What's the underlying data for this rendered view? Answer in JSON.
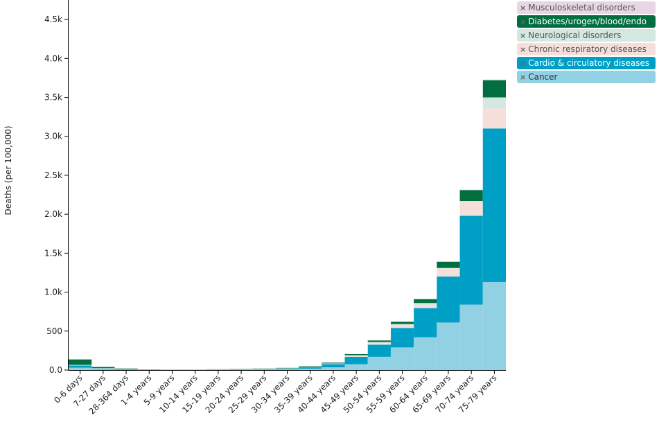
{
  "chart_data": {
    "type": "bar",
    "stacked": true,
    "ylabel": "Deaths (per 100,000)",
    "ylim": [
      0,
      4750
    ],
    "y_ticks": [
      {
        "value": 0,
        "label": "0.0"
      },
      {
        "value": 500,
        "label": "500"
      },
      {
        "value": 1000,
        "label": "1.0k"
      },
      {
        "value": 1500,
        "label": "1.5k"
      },
      {
        "value": 2000,
        "label": "2.0k"
      },
      {
        "value": 2500,
        "label": "2.5k"
      },
      {
        "value": 3000,
        "label": "3.0k"
      },
      {
        "value": 3500,
        "label": "3.5k"
      },
      {
        "value": 4000,
        "label": "4.0k"
      },
      {
        "value": 4500,
        "label": "4.5k"
      }
    ],
    "categories": [
      "0-6 days",
      "7-27 days",
      "28-364 days",
      "1-4 years",
      "5-9 years",
      "10-14 years",
      "15-19 years",
      "20-24 years",
      "25-29 years",
      "30-34 years",
      "35-39 years",
      "40-44 years",
      "45-49 years",
      "50-54 years",
      "55-59 years",
      "60-64 years",
      "65-69 years",
      "70-74 years",
      "75-79 years"
    ],
    "series": [
      {
        "name": "Cancer",
        "color": "#92d1e4",
        "values": [
          30,
          10,
          5,
          3,
          3,
          3,
          4,
          5,
          7,
          10,
          18,
          35,
          75,
          170,
          290,
          420,
          610,
          840,
          1130
        ]
      },
      {
        "name": "Cardio & circulatory diseases",
        "color": "#009fc5",
        "values": [
          28,
          10,
          5,
          2,
          1,
          1,
          2,
          3,
          5,
          8,
          20,
          40,
          95,
          155,
          250,
          375,
          590,
          1140,
          1970
        ]
      },
      {
        "name": "Chronic respiratory diseases",
        "color": "#f5dfdb",
        "values": [
          2,
          2,
          1,
          0,
          0,
          0,
          0,
          1,
          1,
          2,
          3,
          5,
          10,
          20,
          30,
          35,
          100,
          190,
          260
        ]
      },
      {
        "name": "Neurological disorders",
        "color": "#d3e8e0",
        "values": [
          6,
          4,
          2,
          1,
          1,
          1,
          2,
          2,
          2,
          3,
          4,
          5,
          10,
          15,
          20,
          30,
          10,
          0,
          140
        ]
      },
      {
        "name": "Diabetes/urogen/blood/endo",
        "color": "#006e3f",
        "values": [
          70,
          13,
          7,
          2,
          1,
          1,
          2,
          3,
          4,
          5,
          7,
          10,
          15,
          20,
          30,
          50,
          80,
          140,
          220
        ]
      },
      {
        "name": "Musculoskeletal disorders",
        "color": "#e7d7e5",
        "values": [
          0,
          0,
          0,
          0,
          0,
          0,
          0,
          0,
          0,
          0,
          1,
          1,
          2,
          2,
          3,
          4,
          6,
          8,
          10
        ]
      }
    ]
  },
  "legend": [
    {
      "label": "Musculoskeletal disorders",
      "bg": "#e7d7e5",
      "fg": "#555555",
      "remove": "×"
    },
    {
      "label": "Diabetes/urogen/blood/endo",
      "bg": "#006e3f",
      "fg": "#ffffff",
      "remove": "×"
    },
    {
      "label": "Neurological disorders",
      "bg": "#d3e8e0",
      "fg": "#555555",
      "remove": "×"
    },
    {
      "label": "Chronic respiratory diseases",
      "bg": "#f5dfdb",
      "fg": "#555555",
      "remove": "×"
    },
    {
      "label": "Cardio & circulatory diseases",
      "bg": "#009fc5",
      "fg": "#ffffff",
      "remove": "×"
    },
    {
      "label": "Cancer",
      "bg": "#92d1e4",
      "fg": "#333333",
      "remove": "×"
    }
  ]
}
